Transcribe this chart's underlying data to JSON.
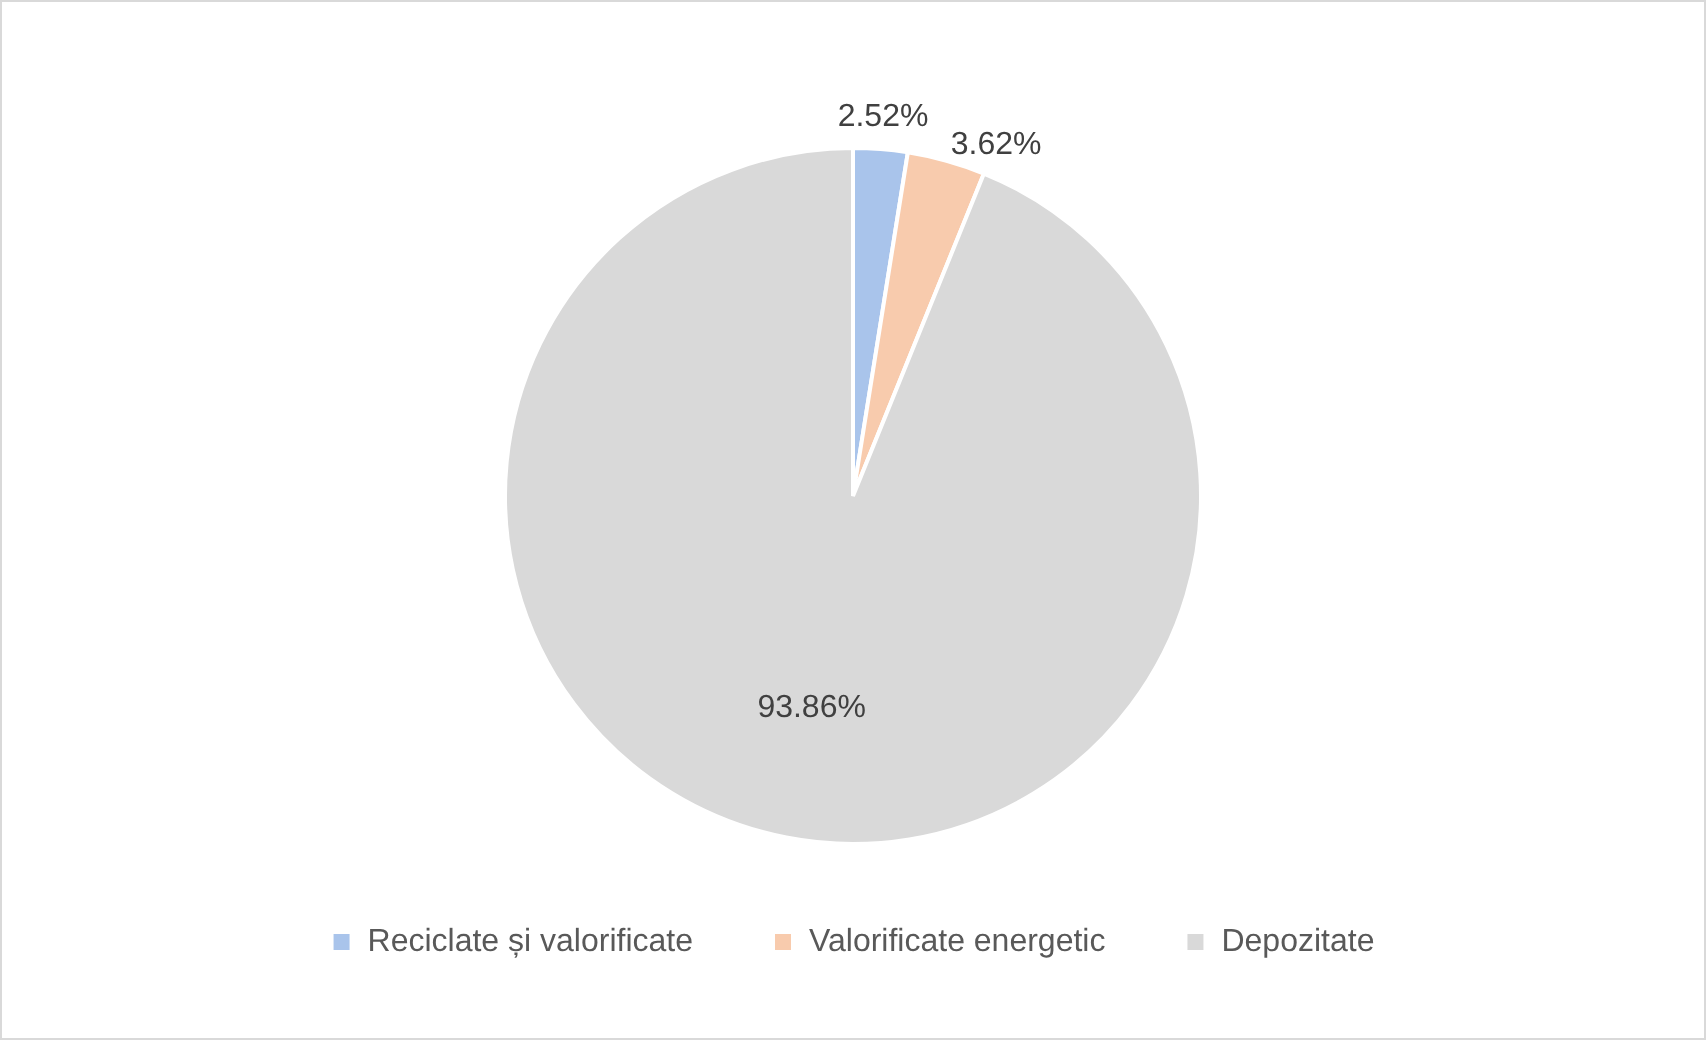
{
  "chart_data": {
    "type": "pie",
    "categories": [
      "Reciclate și valorificate",
      "Valorificate energetic",
      "Depozitate"
    ],
    "values": [
      2.52,
      3.62,
      93.86
    ],
    "colors": [
      "#a9c4eb",
      "#f8cbad",
      "#d9d9d9"
    ],
    "value_labels": [
      "2.52%",
      "3.62%",
      "93.86%"
    ],
    "legend": "bottom"
  }
}
